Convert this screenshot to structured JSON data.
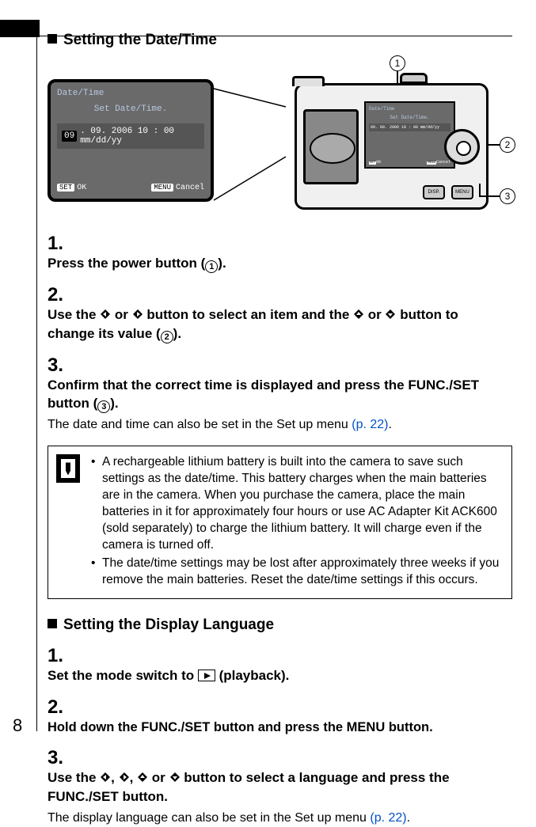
{
  "page_number": "8",
  "section1": {
    "title": "Setting the Date/Time",
    "lcd": {
      "title": "Date/Time",
      "message": "Set Date/Time.",
      "highlighted": "09",
      "datestring": ". 09. 2006 10 : 00 mm/dd/yy",
      "set_label": "SET",
      "set_action": "OK",
      "menu_label": "MENU",
      "menu_action": "Cancel"
    },
    "camera": {
      "disp": "DISP.",
      "menu": "MENU"
    },
    "callouts": {
      "c1": "1",
      "c2": "2",
      "c3": "3"
    },
    "steps": {
      "s1_num": "1.",
      "s1_text_a": "Press the power button (",
      "s1_text_b": ").",
      "s2_num": "2.",
      "s2_text_a": "Use the ",
      "s2_text_b": " or ",
      "s2_text_c": " button to select an item and the ",
      "s2_text_d": " or ",
      "s2_text_e": " button to change its value (",
      "s2_text_f": ").",
      "s3_num": "3.",
      "s3_text_a": "Confirm that the correct time is displayed and press the FUNC./SET button (",
      "s3_text_b": ").",
      "s3_note_a": "The date and time can also be set in the Set up menu ",
      "s3_note_link": "(p. 22)",
      "s3_note_b": "."
    },
    "note": {
      "b1": "A rechargeable lithium battery is built into the camera to save such settings as the date/time. This battery charges when the main batteries are in the camera. When you purchase the camera, place the main batteries in it for approximately four hours or use AC Adapter Kit ACK600 (sold separately) to charge the lithium battery. It will charge even if the camera is turned off.",
      "b2": "The date/time settings may be lost after approximately three weeks if you remove the main batteries. Reset the date/time settings if this occurs."
    }
  },
  "section2": {
    "title": "Setting the Display Language",
    "steps": {
      "s1_num": "1.",
      "s1_text_a": "Set the mode switch to ",
      "s1_text_b": " (playback).",
      "s2_num": "2.",
      "s2_text": "Hold down the FUNC./SET button and press the MENU button.",
      "s3_num": "3.",
      "s3_text_a": "Use the ",
      "s3_text_b": " button to select a language and press the FUNC./SET button.",
      "s3_sep": ", ",
      "s3_or": " or ",
      "s3_note_a": "The display language can also be set in the Set up menu ",
      "s3_note_link": "(p. 22)",
      "s3_note_b": "."
    }
  }
}
